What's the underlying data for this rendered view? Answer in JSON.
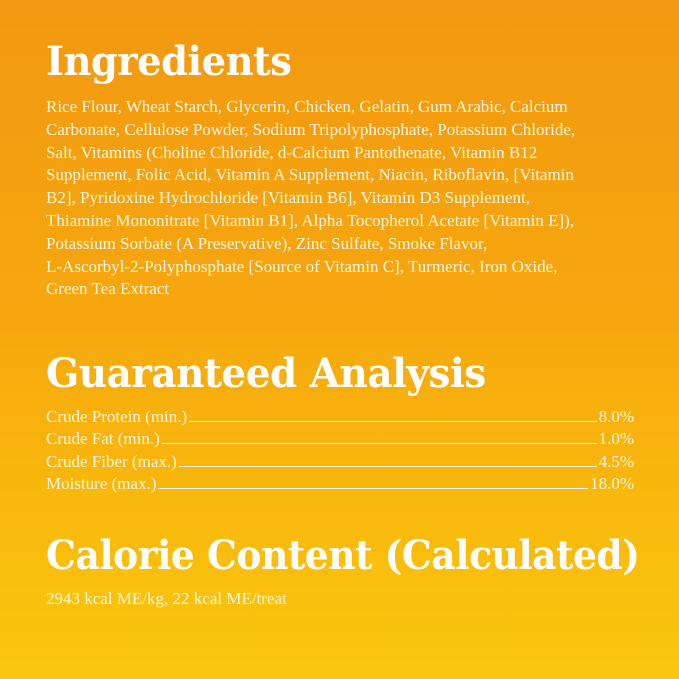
{
  "ingredients": {
    "title": "Ingredients",
    "lines": [
      "Rice Flour, Wheat Starch, Glycerin, Chicken, Gelatin, Gum Arabic, Calcium",
      "Carbonate, Cellulose Powder, Sodium Tripolyphosphate, Potassium Chloride,",
      "Salt, Vitamins (Choline Chloride, d-Calcium Pantothenate, Vitamin B12",
      "Supplement, Folic Acid, Vitamin A Supplement, Niacin, Riboflavin, [Vitamin",
      "B2], Pyridoxine Hydrochloride [Vitamin B6], Vitamin D3 Supplement,",
      "Thiamine Mononitrate [Vitamin B1], Alpha Tocopherol Acetate [Vitamin E]),",
      "Potassium Sorbate (A Preservative), Zinc Sulfate, Smoke Flavor,",
      "L-Ascorbyl-2-Polyphosphate [Source of Vitamin C], Turmeric, Iron Oxide,",
      "Green Tea Extract"
    ]
  },
  "analysis": {
    "title": "Guaranteed Analysis",
    "rows": [
      {
        "label": "Crude Protein (min.)",
        "value": "8.0%"
      },
      {
        "label": "Crude Fat (min.)",
        "value": "1.0%"
      },
      {
        "label": "Crude Fiber (max.)",
        "value": "4.5%"
      },
      {
        "label": "Moisture (max.)",
        "value": "18.0%"
      }
    ]
  },
  "calorie": {
    "title": "Calorie Content (Calculated)",
    "text": "2943 kcal ME/kg, 22 kcal ME/treat"
  },
  "colors": {
    "background_top": "#f39810",
    "background_bottom": "#fbc70b",
    "text": "#ffffff"
  }
}
